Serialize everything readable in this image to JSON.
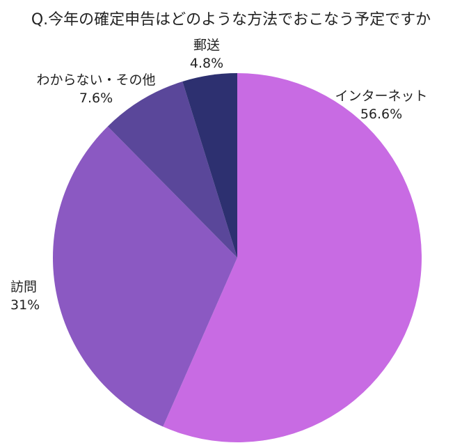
{
  "chart_data": {
    "type": "pie",
    "title": "Q.今年の確定申告はどのような方法でおこなう予定ですか",
    "start_angle_deg": 0,
    "direction": "clockwise",
    "slices": [
      {
        "label": "インターネット",
        "value": 56.6,
        "value_label": "56.6%",
        "color": "#c86be3"
      },
      {
        "label": "訪問",
        "value": 31,
        "value_label": "31%",
        "color": "#8b59c2"
      },
      {
        "label": "わからない・その他",
        "value": 7.6,
        "value_label": "7.6%",
        "color": "#5a479a"
      },
      {
        "label": "郵送",
        "value": 4.8,
        "value_label": "4.8%",
        "color": "#2d3070"
      }
    ]
  }
}
